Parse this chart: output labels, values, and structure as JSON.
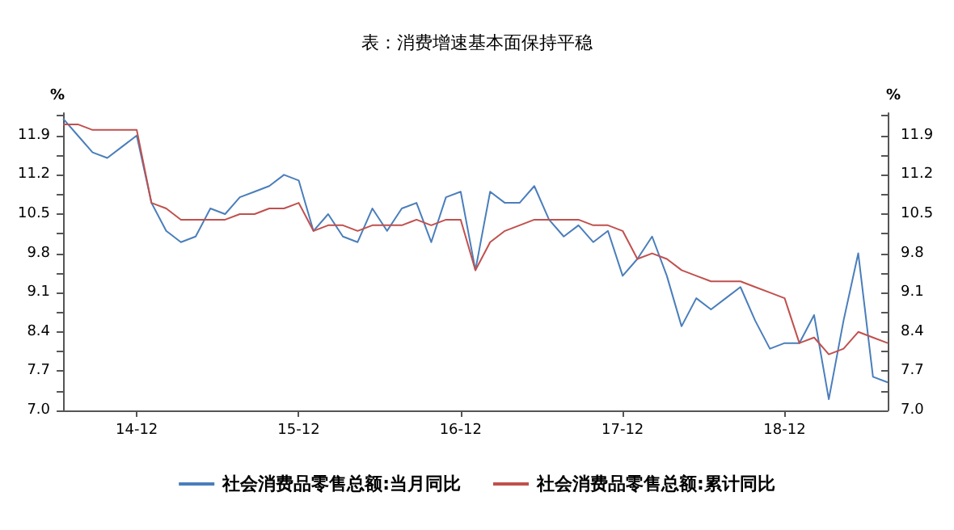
{
  "chart_data": {
    "type": "line",
    "title": "表：消费增速基本面保持平稳",
    "ylabel": "%",
    "y2label": "%",
    "categories": [
      null,
      null,
      null,
      null,
      null,
      "14-12",
      null,
      null,
      null,
      null,
      null,
      null,
      null,
      null,
      null,
      null,
      "15-12",
      null,
      null,
      null,
      null,
      null,
      null,
      null,
      null,
      null,
      null,
      "16-12",
      null,
      null,
      null,
      null,
      null,
      null,
      null,
      null,
      null,
      null,
      "17-12",
      null,
      null,
      null,
      null,
      null,
      null,
      null,
      null,
      null,
      null,
      "18-12",
      null,
      null,
      null,
      null,
      null,
      null,
      null
    ],
    "series": [
      {
        "name": "社会消费品零售总额:当月同比",
        "color": "#4a7ebb",
        "values": [
          12.2,
          11.9,
          11.6,
          11.5,
          11.7,
          11.9,
          10.7,
          10.2,
          10.0,
          10.1,
          10.6,
          10.5,
          10.8,
          10.9,
          11.0,
          11.2,
          11.1,
          10.2,
          10.5,
          10.1,
          10.0,
          10.6,
          10.2,
          10.6,
          10.7,
          10.0,
          10.8,
          10.9,
          9.5,
          10.9,
          10.7,
          10.7,
          11.0,
          10.4,
          10.1,
          10.3,
          10.0,
          10.2,
          9.4,
          9.7,
          10.1,
          9.4,
          8.5,
          9.0,
          8.8,
          9.0,
          9.2,
          8.6,
          8.1,
          8.2,
          8.2,
          8.7,
          7.2,
          8.6,
          9.8,
          7.6,
          7.5
        ]
      },
      {
        "name": "社会消费品零售总额:累计同比",
        "color": "#c0504d",
        "values": [
          12.1,
          12.1,
          12.0,
          12.0,
          12.0,
          12.0,
          10.7,
          10.6,
          10.4,
          10.4,
          10.4,
          10.4,
          10.5,
          10.5,
          10.6,
          10.6,
          10.7,
          10.2,
          10.3,
          10.3,
          10.2,
          10.3,
          10.3,
          10.3,
          10.4,
          10.3,
          10.4,
          10.4,
          9.5,
          10.0,
          10.2,
          10.3,
          10.4,
          10.4,
          10.4,
          10.4,
          10.3,
          10.3,
          10.2,
          9.7,
          9.8,
          9.7,
          9.5,
          9.4,
          9.3,
          9.3,
          9.3,
          9.2,
          9.1,
          9.0,
          8.2,
          8.3,
          8.0,
          8.1,
          8.4,
          8.3,
          8.2
        ]
      }
    ],
    "ylim": [
      7.0,
      12.3
    ],
    "yticks": [
      {
        "value": 7,
        "label": "7.0"
      },
      {
        "value": 7.35,
        "label": null
      },
      {
        "value": 7.7,
        "label": "7.7"
      },
      {
        "value": 8.05,
        "label": null
      },
      {
        "value": 8.4,
        "label": "8.4"
      },
      {
        "value": 8.75,
        "label": null
      },
      {
        "value": 9.1,
        "label": "9.1"
      },
      {
        "value": 9.45,
        "label": null
      },
      {
        "value": 9.8,
        "label": "9.8"
      },
      {
        "value": 10.15,
        "label": null
      },
      {
        "value": 10.5,
        "label": "10.5"
      },
      {
        "value": 10.85,
        "label": null
      },
      {
        "value": 11.2,
        "label": "11.2"
      },
      {
        "value": 11.55,
        "label": null
      },
      {
        "value": 11.9,
        "label": "11.9"
      },
      {
        "value": 12.25,
        "label": null
      }
    ],
    "y2lim": [
      7.0,
      12.3
    ],
    "y2ticks": [
      {
        "value": 7,
        "label": "7.0"
      },
      {
        "value": 7.35,
        "label": null
      },
      {
        "value": 7.7,
        "label": "7.7"
      },
      {
        "value": 8.05,
        "label": null
      },
      {
        "value": 8.4,
        "label": "8.4"
      },
      {
        "value": 8.75,
        "label": null
      },
      {
        "value": 9.1,
        "label": "9.1"
      },
      {
        "value": 9.45,
        "label": null
      },
      {
        "value": 9.8,
        "label": "9.8"
      },
      {
        "value": 10.15,
        "label": null
      },
      {
        "value": 10.5,
        "label": "10.5"
      },
      {
        "value": 10.85,
        "label": null
      },
      {
        "value": 11.2,
        "label": "11.2"
      },
      {
        "value": 11.55,
        "label": null
      },
      {
        "value": 11.9,
        "label": "11.9"
      },
      {
        "value": 12.25,
        "label": null
      }
    ],
    "grid": false,
    "legend": "bottom",
    "marker": "none",
    "line_style": "solid"
  }
}
